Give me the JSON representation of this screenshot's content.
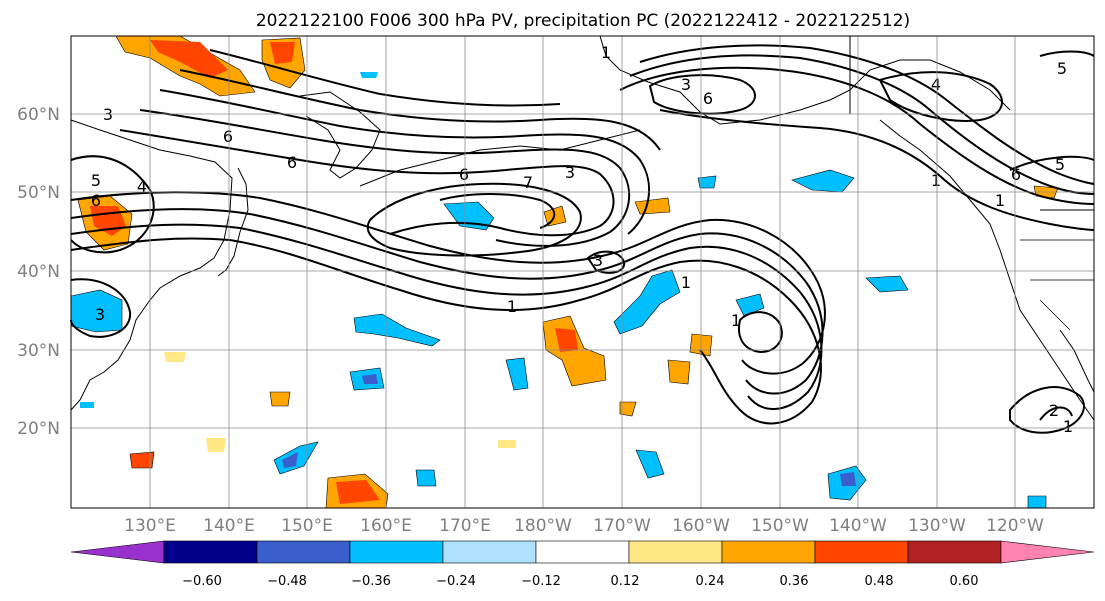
{
  "title": "2022122100 F006 300 hPa PV, precipitation PC (2022122412 - 2022122512)",
  "lat_labels": [
    "60°N",
    "50°N",
    "40°N",
    "30°N",
    "20°N"
  ],
  "lon_labels": [
    "130°E",
    "140°E",
    "150°E",
    "160°E",
    "170°E",
    "180°W",
    "170°W",
    "160°W",
    "150°W",
    "140°W",
    "130°W",
    "120°W"
  ],
  "colorbar": {
    "ticks": [
      "−0.60",
      "−0.48",
      "−0.36",
      "−0.24",
      "−0.12",
      "0.12",
      "0.24",
      "0.36",
      "0.48",
      "0.60"
    ],
    "colors": [
      "#9932cc",
      "#00008b",
      "#3a5fcd",
      "#00bfff",
      "#b0e2ff",
      "#ffffff",
      "#ffe885",
      "#ffa500",
      "#ff4500",
      "#b22222",
      "#ff83b1"
    ]
  },
  "contour_labels": [
    "1",
    "3",
    "6",
    "6",
    "6",
    "6",
    "7",
    "3",
    "1",
    "1",
    "4",
    "5",
    "6",
    "4",
    "3",
    "3",
    "3",
    "5",
    "5",
    "6",
    "1",
    "1",
    "2",
    "1",
    "1"
  ],
  "colors": {
    "positive_fill": "#ffa500",
    "positive_light": "#ffe885",
    "positive_strong": "#ff4500",
    "negative_fill": "#00bfff",
    "negative_light": "#b0e2ff",
    "negative_strong": "#3a5fcd",
    "negative_core": "#9932cc"
  }
}
